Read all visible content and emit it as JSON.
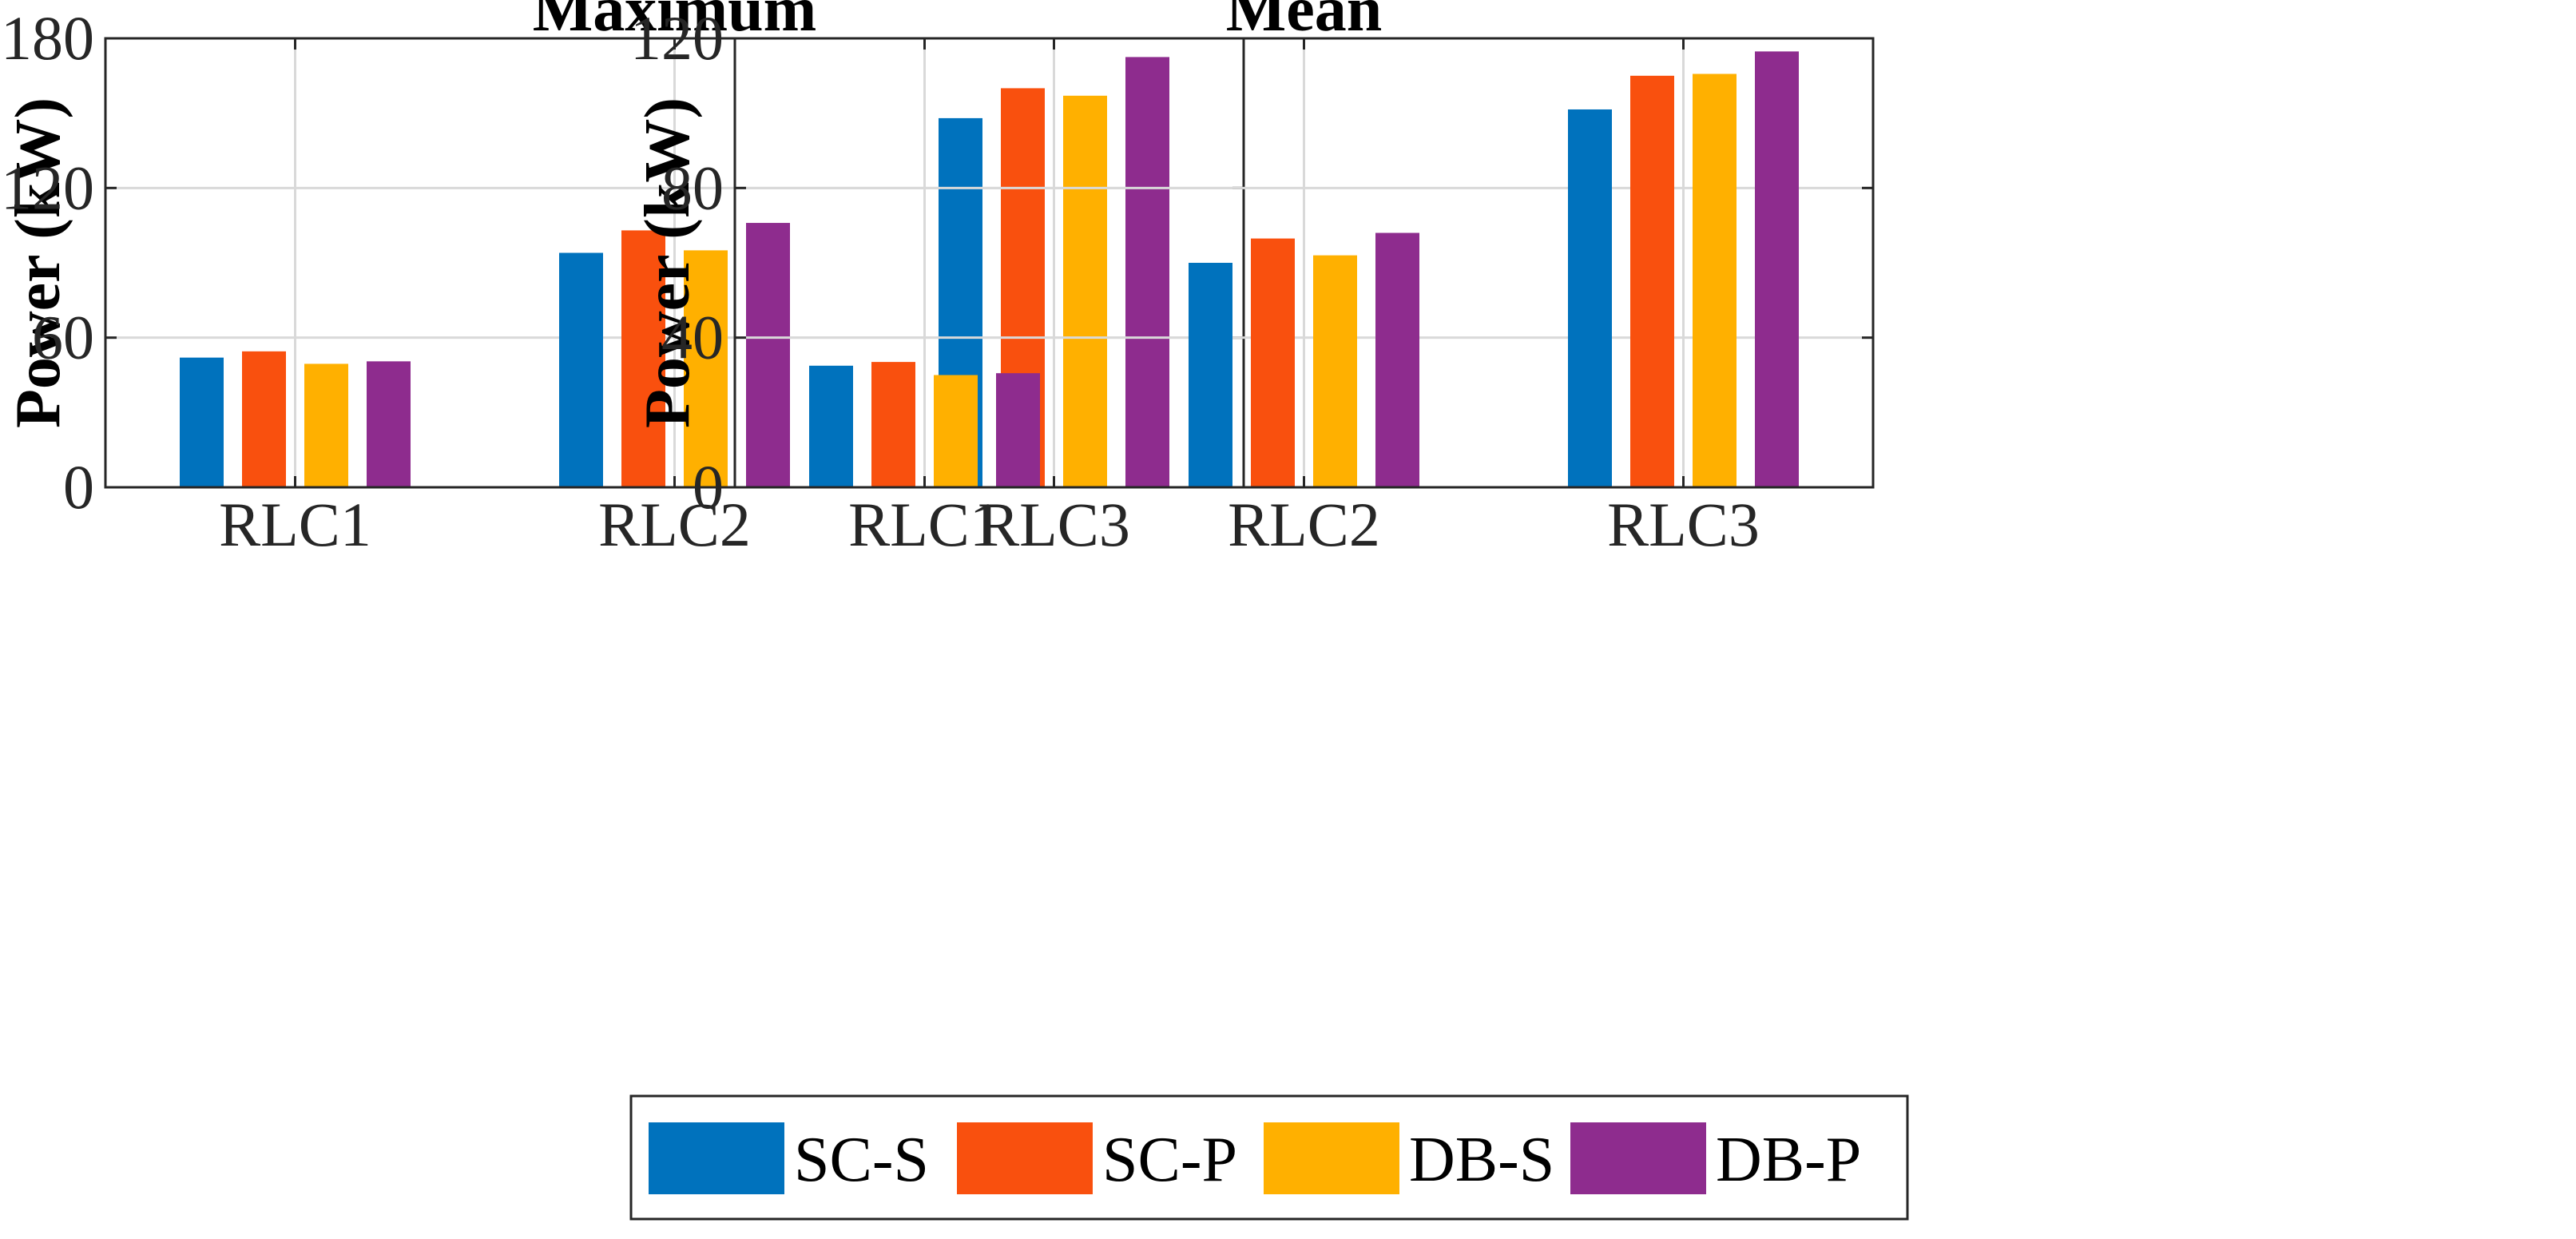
{
  "chart_data": [
    {
      "type": "bar",
      "title": "Maximum",
      "xlabel": "",
      "ylabel": "Power (kW)",
      "ylim": [
        0,
        180
      ],
      "yticks": [
        0,
        60,
        120,
        180
      ],
      "grid": true,
      "categories": [
        "RLC1",
        "RLC2",
        "RLC3"
      ],
      "series": [
        {
          "name": "SC-S",
          "color": "#0072BD",
          "values": [
            52,
            94,
            148
          ]
        },
        {
          "name": "SC-P",
          "color": "#F9500E",
          "values": [
            54.5,
            103,
            160
          ]
        },
        {
          "name": "DB-S",
          "color": "#FFB000",
          "values": [
            49.5,
            95,
            157
          ]
        },
        {
          "name": "DB-P",
          "color": "#8E2C8E",
          "values": [
            50.5,
            106,
            172.5
          ]
        }
      ]
    },
    {
      "type": "bar",
      "title": "Mean",
      "xlabel": "",
      "ylabel": "Power (kW)",
      "ylim": [
        0,
        120
      ],
      "yticks": [
        0,
        40,
        80,
        120
      ],
      "grid": true,
      "categories": [
        "RLC1",
        "RLC2",
        "RLC3"
      ],
      "series": [
        {
          "name": "SC-S",
          "color": "#0072BD",
          "values": [
            32.5,
            60,
            101
          ]
        },
        {
          "name": "SC-P",
          "color": "#F9500E",
          "values": [
            33.5,
            66.5,
            110
          ]
        },
        {
          "name": "DB-S",
          "color": "#FFB000",
          "values": [
            30,
            62,
            110.5
          ]
        },
        {
          "name": "DB-P",
          "color": "#8E2C8E",
          "values": [
            30.5,
            68,
            116.5
          ]
        }
      ]
    }
  ],
  "legend": {
    "placement": "bottom-center",
    "items": [
      {
        "label": "SC-S",
        "color": "#0072BD"
      },
      {
        "label": "SC-P",
        "color": "#F9500E"
      },
      {
        "label": "DB-S",
        "color": "#FFB000"
      },
      {
        "label": "DB-P",
        "color": "#8E2C8E"
      }
    ]
  }
}
